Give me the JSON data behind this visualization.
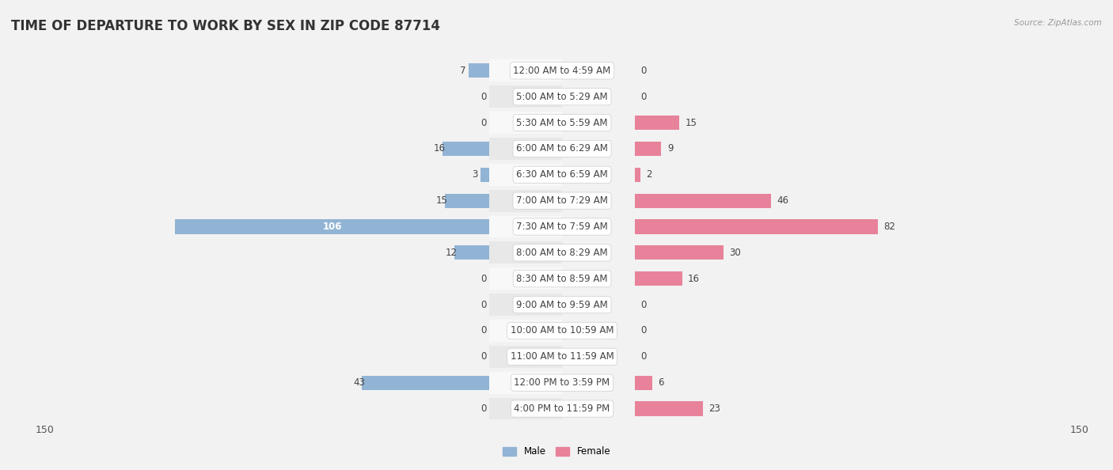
{
  "title": "TIME OF DEPARTURE TO WORK BY SEX IN ZIP CODE 87714",
  "source": "Source: ZipAtlas.com",
  "categories": [
    "12:00 AM to 4:59 AM",
    "5:00 AM to 5:29 AM",
    "5:30 AM to 5:59 AM",
    "6:00 AM to 6:29 AM",
    "6:30 AM to 6:59 AM",
    "7:00 AM to 7:29 AM",
    "7:30 AM to 7:59 AM",
    "8:00 AM to 8:29 AM",
    "8:30 AM to 8:59 AM",
    "9:00 AM to 9:59 AM",
    "10:00 AM to 10:59 AM",
    "11:00 AM to 11:59 AM",
    "12:00 PM to 3:59 PM",
    "4:00 PM to 11:59 PM"
  ],
  "male": [
    7,
    0,
    0,
    16,
    3,
    15,
    106,
    12,
    0,
    0,
    0,
    0,
    43,
    0
  ],
  "female": [
    0,
    0,
    15,
    9,
    2,
    46,
    82,
    30,
    16,
    0,
    0,
    0,
    6,
    23
  ],
  "male_color": "#92b4d4",
  "female_color": "#e8829a",
  "axis_max": 150,
  "bg_color": "#f2f2f2",
  "row_bg_light": "#f8f8f8",
  "row_bg_dark": "#e8e8e8",
  "title_fontsize": 12,
  "label_fontsize": 8.5,
  "value_fontsize": 8.5,
  "tick_fontsize": 9
}
